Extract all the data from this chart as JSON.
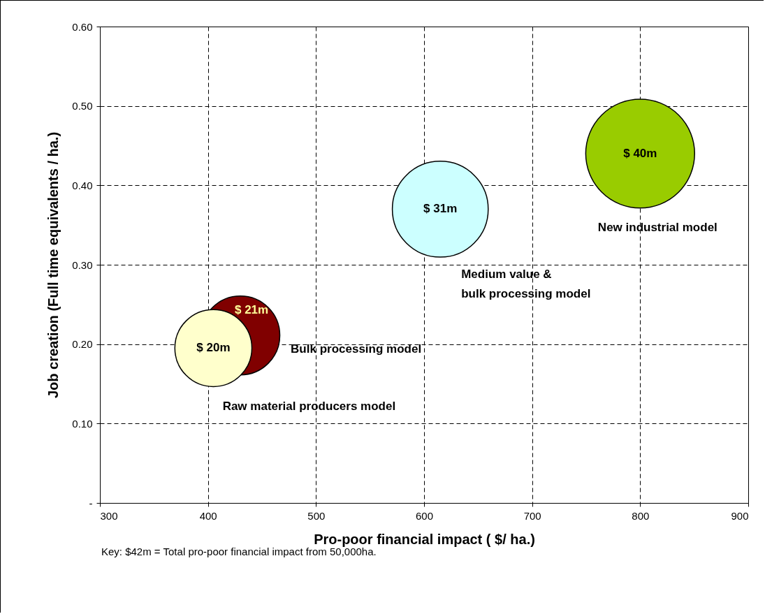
{
  "chart_data": {
    "type": "bubble",
    "xlabel": "Pro-poor financial impact ( $/ ha.)",
    "ylabel": "Job creation (Full time equivalents / ha.)",
    "series": [
      {
        "name": "Bulk processing model",
        "color": "#800000",
        "x": [
          430
        ],
        "values": [
          0.211
        ],
        "sizes": [
          0.525
        ]
      },
      {
        "name": "Raw material producers model",
        "color": "#ffffcc",
        "x": [
          405
        ],
        "values": [
          0.195
        ],
        "sizes": [
          0.5
        ]
      },
      {
        "name": "Medium value &\nbulk processing model",
        "color": "#ccffff",
        "x": [
          615
        ],
        "values": [
          0.37
        ],
        "sizes": [
          0.775
        ]
      },
      {
        "name": "New industrial model",
        "color": "#99cc00",
        "x": [
          800
        ],
        "values": [
          0.44
        ],
        "sizes": [
          1
        ]
      }
    ],
    "xlim": [
      300,
      900
    ],
    "xticks": [
      300,
      400,
      500,
      600,
      700,
      800,
      900
    ],
    "ylim": [
      0,
      0.6
    ],
    "yticks": [
      {
        "value": 0,
        "label": "-"
      },
      {
        "value": 0.1,
        "label": "0.10"
      },
      {
        "value": 0.2,
        "label": "0.20"
      },
      {
        "value": 0.3,
        "label": "0.30"
      },
      {
        "value": 0.4,
        "label": "0.40"
      },
      {
        "value": 0.5,
        "label": "0.50"
      },
      {
        "value": 0.6,
        "label": "0.60"
      }
    ],
    "grid": true,
    "annotations": [
      {
        "text": "$ 21m",
        "x": 430,
        "y": 0.211
      },
      {
        "text": "$ 20m",
        "x": 405,
        "y": 0.195
      },
      {
        "text": "$ 31m",
        "x": 615,
        "y": 0.37
      },
      {
        "text": "$ 40m",
        "x": 800,
        "y": 0.44
      },
      "Key: $42m = Total pro-poor financial impact from 50,000ha."
    ]
  }
}
